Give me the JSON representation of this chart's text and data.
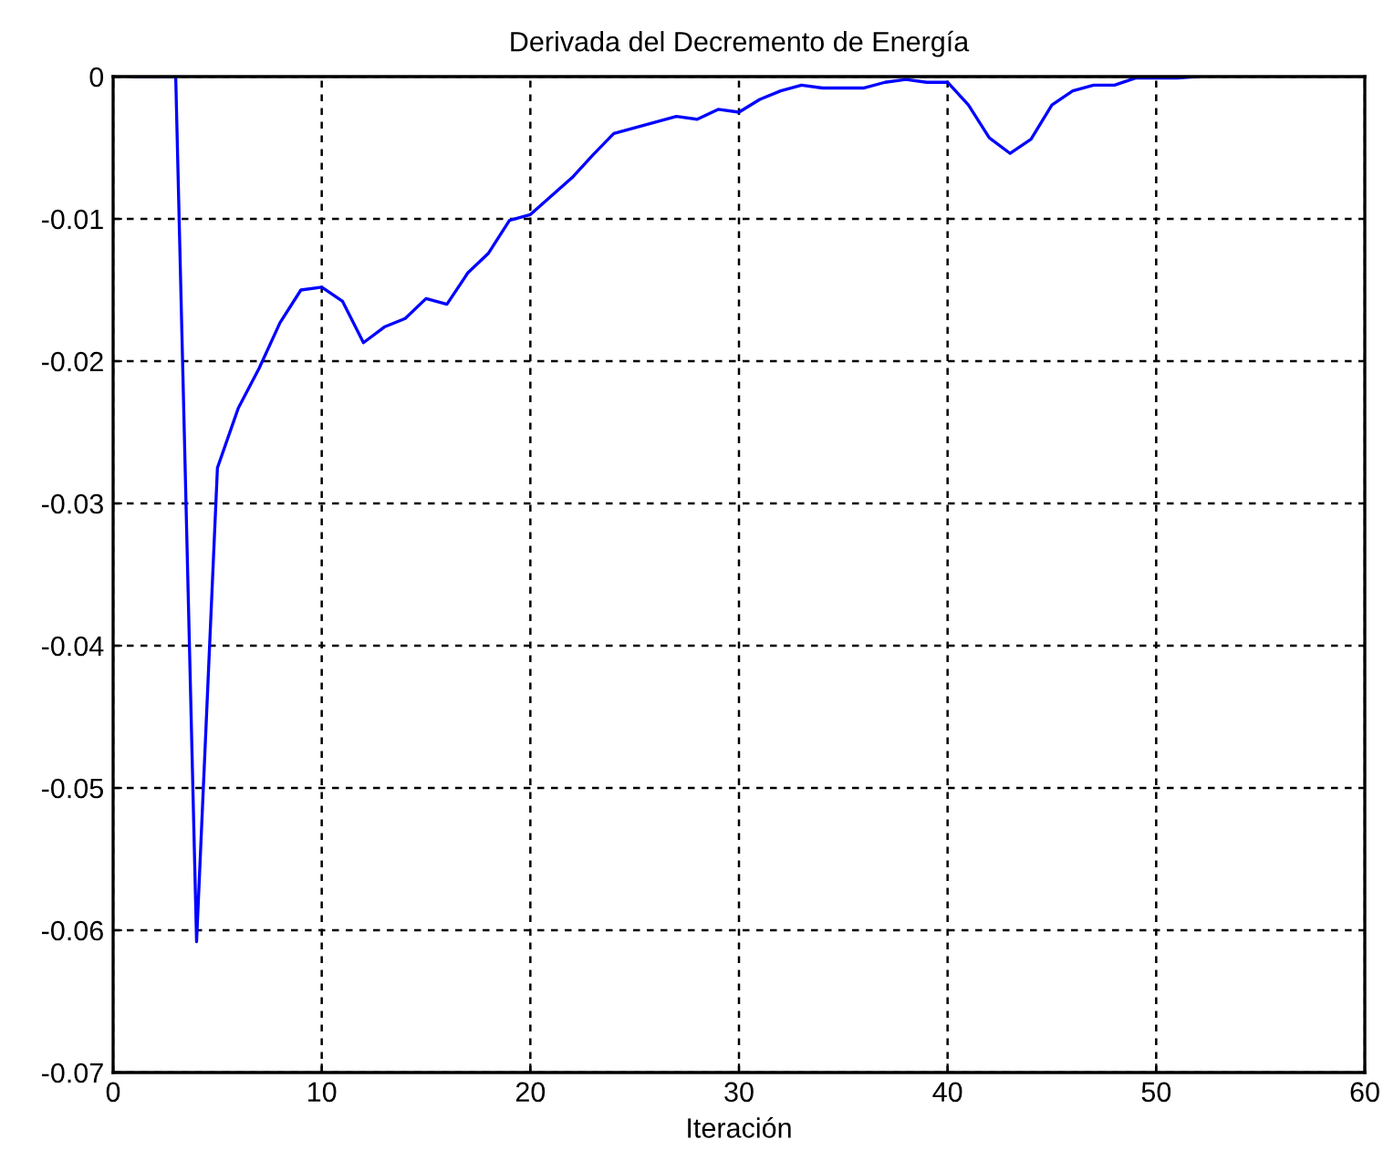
{
  "chart_data": {
    "type": "line",
    "title": "Derivada del Decremento de Energía",
    "xlabel": "Iteración",
    "x": [
      1,
      2,
      3,
      4,
      5,
      6,
      7,
      8,
      9,
      10,
      11,
      12,
      13,
      14,
      15,
      16,
      17,
      18,
      19,
      20,
      21,
      22,
      23,
      24,
      25,
      26,
      27,
      28,
      29,
      30,
      31,
      32,
      33,
      34,
      35,
      36,
      37,
      38,
      39,
      40,
      41,
      42,
      43,
      44,
      45,
      46,
      47,
      48,
      49,
      50,
      51,
      52
    ],
    "series": [
      {
        "color": "#0000ff",
        "values": [
          0,
          0,
          0,
          -0.0608,
          -0.0275,
          -0.0233,
          -0.0205,
          -0.0173,
          -0.015,
          -0.0148,
          -0.0158,
          -0.0187,
          -0.0176,
          -0.017,
          -0.0156,
          -0.016,
          -0.0138,
          -0.0124,
          -0.0101,
          -0.0097,
          -0.0084,
          -0.0071,
          -0.0055,
          -0.004,
          -0.0036,
          -0.0032,
          -0.0028,
          -0.003,
          -0.0023,
          -0.0025,
          -0.0016,
          -0.001,
          -0.0006,
          -0.0008,
          -0.0008,
          -0.0008,
          -0.0004,
          -0.0002,
          -0.0004,
          -0.0004,
          -0.002,
          -0.0043,
          -0.0054,
          -0.0044,
          -0.002,
          -0.001,
          -0.0006,
          -0.0006,
          -0.0001,
          -0.0001,
          -0.0001,
          0
        ]
      }
    ],
    "xlim": [
      0,
      60
    ],
    "xticks": [
      0,
      10,
      20,
      30,
      40,
      50,
      60
    ],
    "ylim": [
      -0.07,
      0
    ],
    "yticks": [
      -0.07,
      -0.06,
      -0.05,
      -0.04,
      -0.03,
      -0.02,
      -0.01,
      0
    ],
    "grid": true,
    "line_style": "solid",
    "marker": "none"
  }
}
